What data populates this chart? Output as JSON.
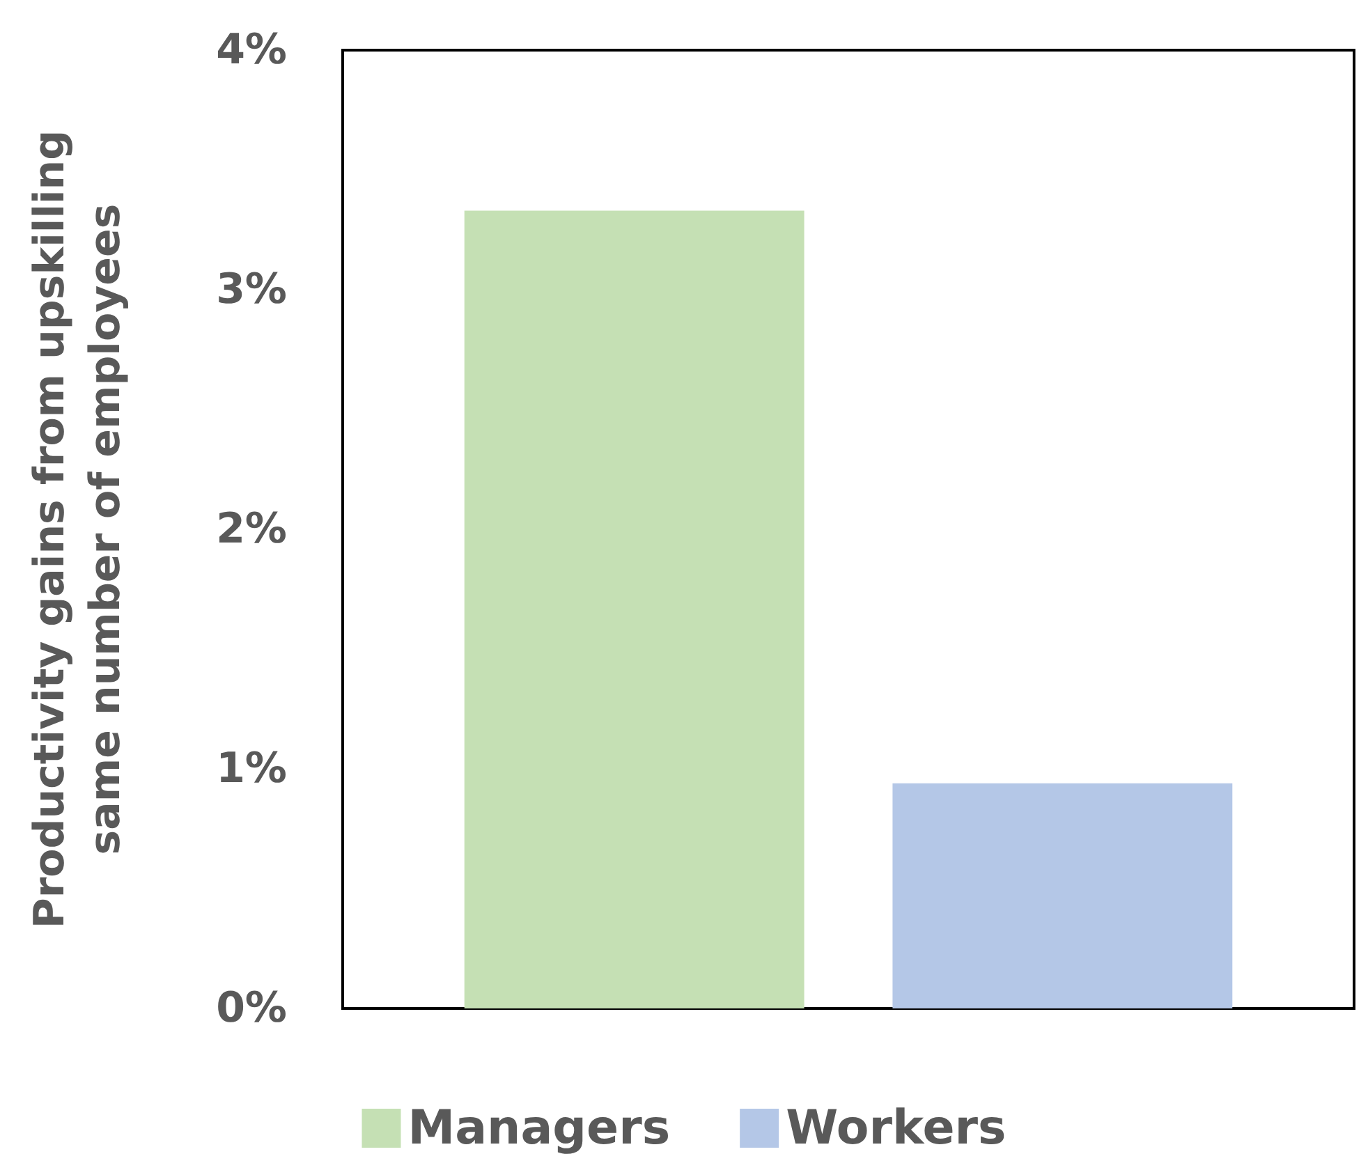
{
  "chart_data": {
    "type": "bar",
    "ylabel": "Productivity gains from upskilling\nsame number of employees",
    "categories": [
      null
    ],
    "series": [
      {
        "name": "Managers",
        "color": "#c5e0b4",
        "values": [
          3.33
        ]
      },
      {
        "name": "Workers",
        "color": "#b4c7e7",
        "values": [
          0.94
        ]
      }
    ],
    "ylim": [
      0,
      4
    ],
    "yticks": [
      {
        "value": 0,
        "label": "0%"
      },
      {
        "value": 1,
        "label": "1%"
      },
      {
        "value": 2,
        "label": "2%"
      },
      {
        "value": 3,
        "label": "3%"
      },
      {
        "value": 4,
        "label": "4%"
      }
    ],
    "grid": false,
    "legend": "bottom",
    "tick_labels": "y"
  }
}
